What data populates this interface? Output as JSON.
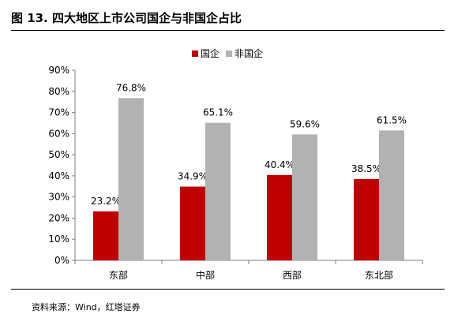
{
  "figure": {
    "title": "图 13. 四大地区上市公司国企与非国企占比",
    "source": "资料来源：Wind，红塔证券"
  },
  "chart_data": {
    "type": "bar",
    "categories": [
      "东部",
      "中部",
      "西部",
      "东北部"
    ],
    "series": [
      {
        "name": "国企",
        "values": [
          23.2,
          34.9,
          40.4,
          38.5
        ],
        "labels": [
          "23.2%",
          "34.9%",
          "40.4%",
          "38.5%"
        ],
        "color": "#c00000"
      },
      {
        "name": "非国企",
        "values": [
          76.8,
          65.1,
          59.6,
          61.5
        ],
        "labels": [
          "76.8%",
          "65.1%",
          "59.6%",
          "61.5%"
        ],
        "color": "#b2b2b2"
      }
    ],
    "yticks": [
      "0%",
      "10%",
      "20%",
      "30%",
      "40%",
      "50%",
      "60%",
      "70%",
      "80%",
      "90%"
    ],
    "ylim": [
      0,
      90
    ],
    "legend_position": "top-center",
    "grid": false,
    "axis_color": "#7f7f7f"
  }
}
